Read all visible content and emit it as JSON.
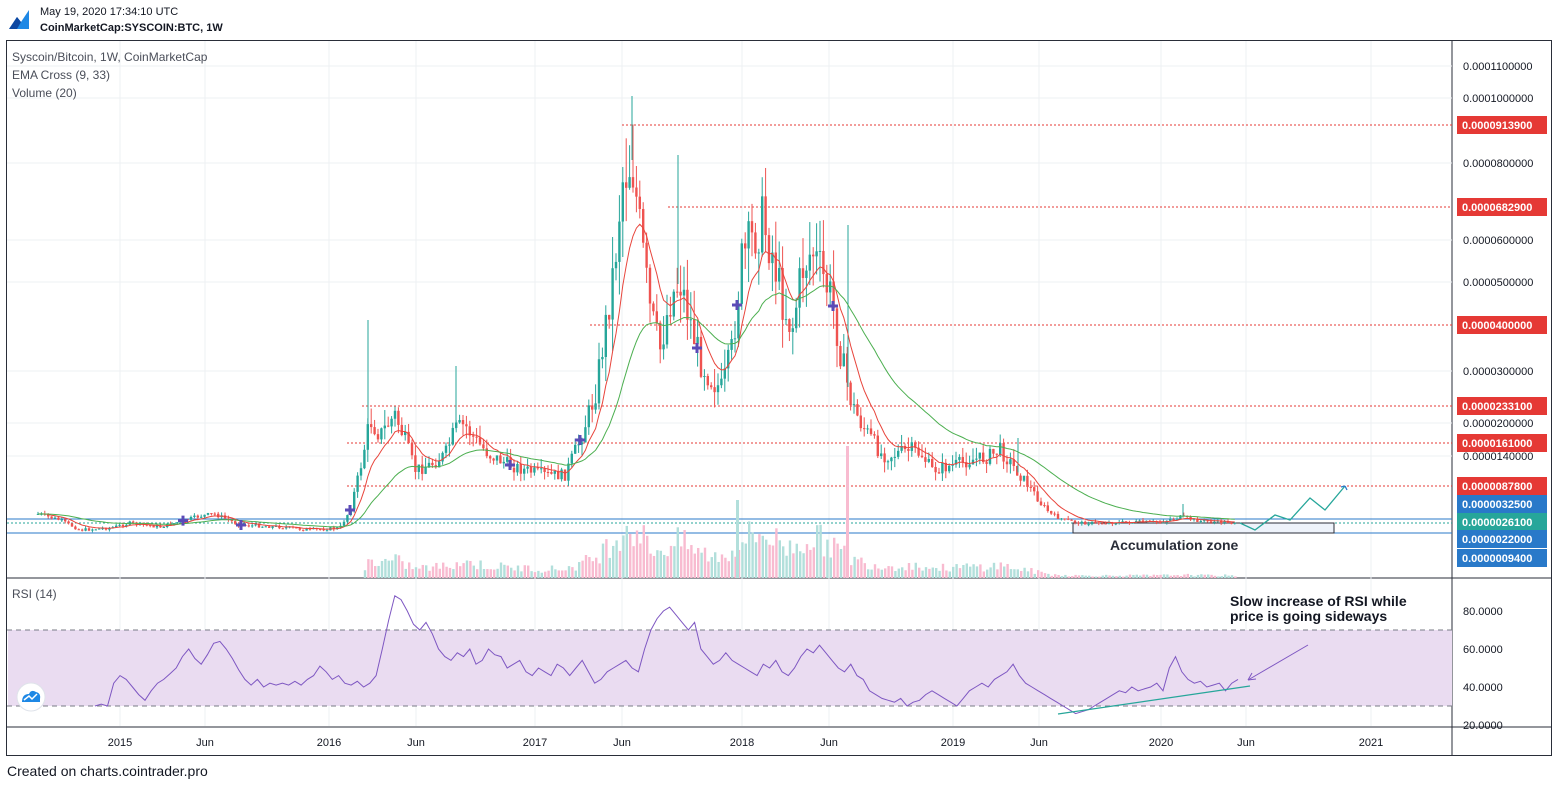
{
  "header": {
    "timestamp": "May 19, 2020 17:34:10 UTC",
    "symbol": "CoinMarketCap:SYSCOIN:BTC, 1W"
  },
  "legend": {
    "title": "Syscoin/Bitcoin, 1W, CoinMarketCap",
    "ema": "EMA Cross (9, 33)",
    "volume": "Volume (20)",
    "rsi": "RSI (14)"
  },
  "colors": {
    "up": "#26a69a",
    "down": "#ef5350",
    "ema_fast": "#e8453c",
    "ema_slow": "#4caf50",
    "cross": "#5b4bb7",
    "rsi": "#7e57c2",
    "rsi_band": "#eadcf1",
    "level_red": "#e53935",
    "level_blue": "#2979c9",
    "arrow": "#26a69a",
    "trend": "#26a69a"
  },
  "footer": "Created on charts.cointrader.pro",
  "chart_data": {
    "type": "candlestick",
    "price_axis_ticks": [
      "0.0001100000",
      "0.0001000000",
      "0.0000800000",
      "0.0000600000",
      "0.0000500000",
      "0.0000300000",
      "0.0000200000",
      "0.0000140000"
    ],
    "time_axis_ticks": [
      "2015",
      "Jun",
      "2016",
      "Jun",
      "2017",
      "Jun",
      "2018",
      "Jun",
      "2019",
      "Jun",
      "2020",
      "Jun",
      "2021"
    ],
    "levels_red": [
      "0.0000913900",
      "0.0000682900",
      "0.0000400000",
      "0.0000233100",
      "0.0000161000",
      "0.0000087800"
    ],
    "levels_blue": [
      {
        "label": "0.0000032500",
        "color": "#2979c9"
      },
      {
        "label": "0.0000026100",
        "color": "#26a69a"
      },
      {
        "label": "0.0000022000",
        "color": "#2979c9"
      },
      {
        "label": "0.0000009400",
        "color": "#2979c9"
      }
    ],
    "annotations": {
      "accumulation": "Accumulation zone",
      "rsi_note_1": "Slow increase of RSI while",
      "rsi_note_2": "price is going sideways"
    },
    "rsi": {
      "ticks": [
        "80.0000",
        "60.0000",
        "40.0000",
        "20.0000"
      ],
      "band": [
        30,
        70
      ],
      "values": [
        30,
        31,
        30,
        42,
        46,
        44,
        40,
        36,
        33,
        38,
        42,
        44,
        47,
        50,
        56,
        60,
        55,
        52,
        57,
        63,
        64,
        60,
        55,
        49,
        44,
        41,
        44,
        40,
        42,
        41,
        42,
        41,
        43,
        41,
        44,
        46,
        51,
        48,
        44,
        46,
        42,
        41,
        43,
        40,
        42,
        46,
        60,
        75,
        88,
        86,
        80,
        73,
        70,
        74,
        68,
        60,
        56,
        54,
        58,
        56,
        60,
        52,
        54,
        60,
        57,
        56,
        50,
        52,
        54,
        48,
        46,
        50,
        48,
        46,
        52,
        50,
        46,
        50,
        54,
        48,
        42,
        44,
        48,
        50,
        52,
        54,
        50,
        48,
        60,
        70,
        76,
        80,
        82,
        78,
        74,
        70,
        74,
        60,
        56,
        52,
        54,
        58,
        54,
        52,
        50,
        48,
        46,
        52,
        50,
        54,
        48,
        46,
        50,
        56,
        60,
        58,
        62,
        58,
        54,
        50,
        48,
        52,
        46,
        44,
        38,
        36,
        34,
        33,
        32,
        34,
        30,
        32,
        33,
        36,
        38,
        36,
        34,
        32,
        30,
        34,
        38,
        40,
        42,
        40,
        44,
        46,
        48,
        52,
        46,
        42,
        40,
        38,
        36,
        34,
        32,
        30,
        28,
        26,
        27,
        28,
        30,
        32,
        34,
        36,
        38,
        37,
        40,
        38,
        39,
        40,
        42,
        38,
        50,
        56,
        48,
        44,
        42,
        43,
        40,
        41,
        42,
        38,
        42,
        44
      ]
    },
    "candles_desc": "weekly OHLC, 2014-2020"
  }
}
